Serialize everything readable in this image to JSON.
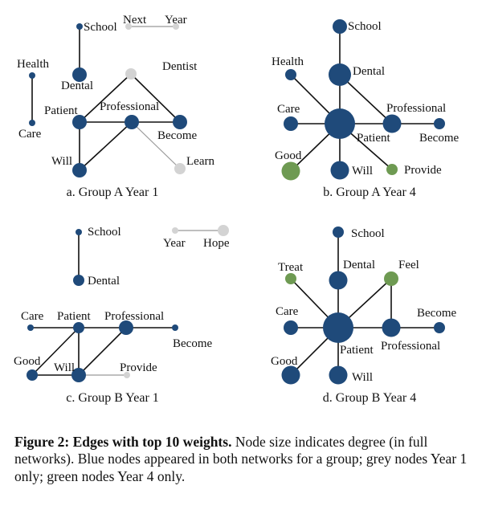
{
  "colors": {
    "blue": "#1f4a7a",
    "grey": "#d3d3d3",
    "green": "#6e9a52",
    "edge_dark": "#111111",
    "edge_light": "#999999"
  },
  "panels": [
    {
      "id": "a",
      "caption": "a. Group A Year 1",
      "nodes": [
        {
          "id": "School",
          "label": "School",
          "color": "blue",
          "size": 1
        },
        {
          "id": "Next",
          "label": "Next",
          "color": "grey",
          "size": 1
        },
        {
          "id": "Year",
          "label": "Year",
          "color": "grey",
          "size": 1
        },
        {
          "id": "Health",
          "label": "Health",
          "color": "blue",
          "size": 1
        },
        {
          "id": "Care",
          "label": "Care",
          "color": "blue",
          "size": 1
        },
        {
          "id": "Dental",
          "label": "Dental",
          "color": "blue",
          "size": 3
        },
        {
          "id": "Dentist",
          "label": "Dentist",
          "color": "grey",
          "size": 2
        },
        {
          "id": "Patient",
          "label": "Patient",
          "color": "blue",
          "size": 3
        },
        {
          "id": "Professional",
          "label": "Professional",
          "color": "blue",
          "size": 3
        },
        {
          "id": "Become",
          "label": "Become",
          "color": "blue",
          "size": 3
        },
        {
          "id": "Will",
          "label": "Will",
          "color": "blue",
          "size": 3
        },
        {
          "id": "Learn",
          "label": "Learn",
          "color": "grey",
          "size": 2
        }
      ],
      "edges": [
        {
          "source": "School",
          "target": "Dental",
          "weight": "strong"
        },
        {
          "source": "Next",
          "target": "Year",
          "weight": "light"
        },
        {
          "source": "Health",
          "target": "Care",
          "weight": "strong"
        },
        {
          "source": "Patient",
          "target": "Professional",
          "weight": "strong"
        },
        {
          "source": "Professional",
          "target": "Become",
          "weight": "strong"
        },
        {
          "source": "Patient",
          "target": "Dentist",
          "weight": "strong"
        },
        {
          "source": "Dentist",
          "target": "Become",
          "weight": "strong"
        },
        {
          "source": "Patient",
          "target": "Will",
          "weight": "strong"
        },
        {
          "source": "Will",
          "target": "Professional",
          "weight": "strong"
        },
        {
          "source": "Professional",
          "target": "Learn",
          "weight": "light"
        }
      ]
    },
    {
      "id": "b",
      "caption": "b. Group A Year 4",
      "nodes": [
        {
          "id": "School",
          "label": "School",
          "color": "blue",
          "size": 3
        },
        {
          "id": "Health",
          "label": "Health",
          "color": "blue",
          "size": 2
        },
        {
          "id": "Dental",
          "label": "Dental",
          "color": "blue",
          "size": 5
        },
        {
          "id": "Care",
          "label": "Care",
          "color": "blue",
          "size": 3
        },
        {
          "id": "Patient",
          "label": "Patient",
          "color": "blue",
          "size": 6
        },
        {
          "id": "Professional",
          "label": "Professional",
          "color": "blue",
          "size": 4
        },
        {
          "id": "Become",
          "label": "Become",
          "color": "blue",
          "size": 2
        },
        {
          "id": "Good",
          "label": "Good",
          "color": "green",
          "size": 4
        },
        {
          "id": "Will",
          "label": "Will",
          "color": "blue",
          "size": 4
        },
        {
          "id": "Provide",
          "label": "Provide",
          "color": "green",
          "size": 2
        }
      ],
      "edges": [
        {
          "source": "School",
          "target": "Dental",
          "weight": "strong"
        },
        {
          "source": "Dental",
          "target": "Patient",
          "weight": "strong"
        },
        {
          "source": "Health",
          "target": "Patient",
          "weight": "strong"
        },
        {
          "source": "Dental",
          "target": "Professional",
          "weight": "strong"
        },
        {
          "source": "Care",
          "target": "Patient",
          "weight": "strong"
        },
        {
          "source": "Patient",
          "target": "Professional",
          "weight": "strong"
        },
        {
          "source": "Professional",
          "target": "Become",
          "weight": "strong"
        },
        {
          "source": "Patient",
          "target": "Good",
          "weight": "strong"
        },
        {
          "source": "Patient",
          "target": "Will",
          "weight": "strong"
        },
        {
          "source": "Patient",
          "target": "Provide",
          "weight": "strong"
        }
      ]
    },
    {
      "id": "c",
      "caption": "c. Group B Year 1",
      "nodes": [
        {
          "id": "School",
          "label": "School",
          "color": "blue",
          "size": 1
        },
        {
          "id": "Dental",
          "label": "Dental",
          "color": "blue",
          "size": 2
        },
        {
          "id": "Year",
          "label": "Year",
          "color": "grey",
          "size": 1
        },
        {
          "id": "Hope",
          "label": "Hope",
          "color": "grey",
          "size": 2
        },
        {
          "id": "Care",
          "label": "Care",
          "color": "blue",
          "size": 1
        },
        {
          "id": "Patient",
          "label": "Patient",
          "color": "blue",
          "size": 2
        },
        {
          "id": "Professional",
          "label": "Professional",
          "color": "blue",
          "size": 3
        },
        {
          "id": "Become",
          "label": "Become",
          "color": "blue",
          "size": 1
        },
        {
          "id": "Good",
          "label": "Good",
          "color": "blue",
          "size": 2
        },
        {
          "id": "Will",
          "label": "Will",
          "color": "blue",
          "size": 3
        },
        {
          "id": "Provide",
          "label": "Provide",
          "color": "grey",
          "size": 1
        }
      ],
      "edges": [
        {
          "source": "School",
          "target": "Dental",
          "weight": "strong"
        },
        {
          "source": "Year",
          "target": "Hope",
          "weight": "light"
        },
        {
          "source": "Care",
          "target": "Patient",
          "weight": "strong"
        },
        {
          "source": "Patient",
          "target": "Professional",
          "weight": "strong"
        },
        {
          "source": "Professional",
          "target": "Become",
          "weight": "strong"
        },
        {
          "source": "Patient",
          "target": "Will",
          "weight": "strong"
        },
        {
          "source": "Good",
          "target": "Patient",
          "weight": "strong"
        },
        {
          "source": "Good",
          "target": "Will",
          "weight": "strong"
        },
        {
          "source": "Will",
          "target": "Professional",
          "weight": "strong"
        },
        {
          "source": "Will",
          "target": "Provide",
          "weight": "light"
        }
      ]
    },
    {
      "id": "d",
      "caption": "d. Group B Year 4",
      "nodes": [
        {
          "id": "School",
          "label": "School",
          "color": "blue",
          "size": 2
        },
        {
          "id": "Treat",
          "label": "Treat",
          "color": "green",
          "size": 2
        },
        {
          "id": "Dental",
          "label": "Dental",
          "color": "blue",
          "size": 4
        },
        {
          "id": "Feel",
          "label": "Feel",
          "color": "green",
          "size": 3
        },
        {
          "id": "Care",
          "label": "Care",
          "color": "blue",
          "size": 3
        },
        {
          "id": "Patient",
          "label": "Patient",
          "color": "blue",
          "size": 6
        },
        {
          "id": "Professional",
          "label": "Professional",
          "color": "blue",
          "size": 4
        },
        {
          "id": "Become",
          "label": "Become",
          "color": "blue",
          "size": 2
        },
        {
          "id": "Good",
          "label": "Good",
          "color": "blue",
          "size": 4
        },
        {
          "id": "Will",
          "label": "Will",
          "color": "blue",
          "size": 4
        }
      ],
      "edges": [
        {
          "source": "School",
          "target": "Dental",
          "weight": "strong"
        },
        {
          "source": "Treat",
          "target": "Patient",
          "weight": "strong"
        },
        {
          "source": "Dental",
          "target": "Patient",
          "weight": "strong"
        },
        {
          "source": "Feel",
          "target": "Patient",
          "weight": "strong"
        },
        {
          "source": "Feel",
          "target": "Professional",
          "weight": "strong"
        },
        {
          "source": "Care",
          "target": "Patient",
          "weight": "strong"
        },
        {
          "source": "Patient",
          "target": "Professional",
          "weight": "strong"
        },
        {
          "source": "Professional",
          "target": "Become",
          "weight": "strong"
        },
        {
          "source": "Good",
          "target": "Patient",
          "weight": "strong"
        },
        {
          "source": "Will",
          "target": "Patient",
          "weight": "strong"
        }
      ]
    }
  ],
  "figure_caption": {
    "bold": "Figure 2: Edges with top 10 weights.",
    "text": " Node size indicates degree (in full networks). Blue nodes appeared in both networks for a group; grey nodes Year 1 only; green nodes Year 4 only."
  }
}
